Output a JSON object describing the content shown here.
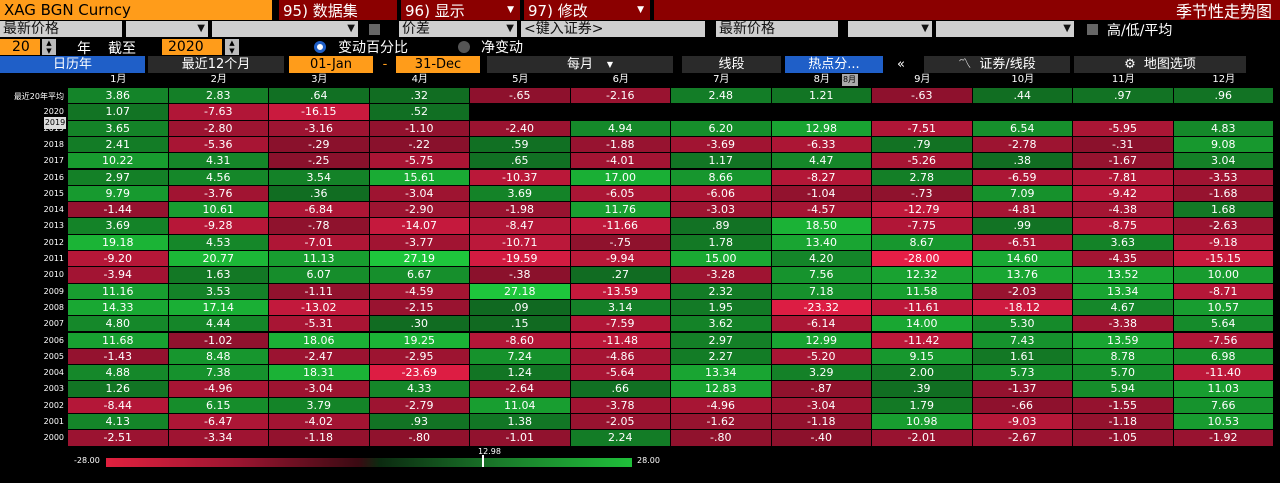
{
  "header": {
    "ticker": "XAG BGN Curncy",
    "menu1": "95) 数据集",
    "menu2": "96) 显示",
    "menu3": "97) 修改",
    "title": "季节性走势图"
  },
  "controls": {
    "field1": "最新价格",
    "checkbox_label1": "价差",
    "security_placeholder": "<键入证券>",
    "field2": "最新价格",
    "checkbox_label2": "高/低/平均",
    "years": "20",
    "years_unit": "年",
    "as_of_label": "截至",
    "as_of_year": "2020",
    "radio1": "变动百分比",
    "radio2": "净变动"
  },
  "toolbar": {
    "calendar_year": "日历年",
    "last12": "最近12个月",
    "start": "01-Jan",
    "dash": "-",
    "end": "31-Dec",
    "period": "每月",
    "line_seg": "线段",
    "hotspot": "热点分...",
    "collapse": "«",
    "security_line": "证券/线段",
    "map_options": "地图选项",
    "hotspot_tag": "8月"
  },
  "months": [
    "1月",
    "2月",
    "3月",
    "4月",
    "5月",
    "6月",
    "7月",
    "8月",
    "9月",
    "10月",
    "11月",
    "12月"
  ],
  "rows": [
    {
      "label": "最近20年平均",
      "values": [
        "3.86",
        "2.83",
        ".64",
        ".32",
        "-.65",
        "-2.16",
        "2.48",
        "1.21",
        "-.63",
        ".44",
        ".97",
        ".96"
      ]
    },
    {
      "label": "2020",
      "values": [
        "1.07",
        "-7.63",
        "-16.15",
        ".52",
        "",
        "",
        "",
        "",
        "",
        "",
        "",
        ""
      ]
    },
    {
      "label": "2019",
      "values": [
        "3.65",
        "-2.80",
        "-3.16",
        "-1.10",
        "-2.40",
        "4.94",
        "6.20",
        "12.98",
        "-7.51",
        "6.54",
        "-5.95",
        "4.83"
      ]
    },
    {
      "label": "2018",
      "values": [
        "2.41",
        "-5.36",
        "-.29",
        "-.22",
        ".59",
        "-1.88",
        "-3.69",
        "-6.33",
        ".79",
        "-2.78",
        "-.31",
        "9.08"
      ]
    },
    {
      "label": "2017",
      "values": [
        "10.22",
        "4.31",
        "-.25",
        "-5.75",
        ".65",
        "-4.01",
        "1.17",
        "4.47",
        "-5.26",
        ".38",
        "-1.67",
        "3.04"
      ]
    },
    {
      "label": "2016",
      "values": [
        "2.97",
        "4.56",
        "3.54",
        "15.61",
        "-10.37",
        "17.00",
        "8.66",
        "-8.27",
        "2.78",
        "-6.59",
        "-7.81",
        "-3.53"
      ]
    },
    {
      "label": "2015",
      "values": [
        "9.79",
        "-3.76",
        ".36",
        "-3.04",
        "3.69",
        "-6.05",
        "-6.06",
        "-1.04",
        "-.73",
        "7.09",
        "-9.42",
        "-1.68"
      ]
    },
    {
      "label": "2014",
      "values": [
        "-1.44",
        "10.61",
        "-6.84",
        "-2.90",
        "-1.98",
        "11.76",
        "-3.03",
        "-4.57",
        "-12.79",
        "-4.81",
        "-4.38",
        "1.68"
      ]
    },
    {
      "label": "2013",
      "values": [
        "3.69",
        "-9.28",
        "-.78",
        "-14.07",
        "-8.47",
        "-11.66",
        ".89",
        "18.50",
        "-7.75",
        ".99",
        "-8.75",
        "-2.63"
      ]
    },
    {
      "label": "2012",
      "values": [
        "19.18",
        "4.53",
        "-7.01",
        "-3.77",
        "-10.71",
        "-.75",
        "1.78",
        "13.40",
        "8.67",
        "-6.51",
        "3.63",
        "-9.18"
      ]
    },
    {
      "label": "2011",
      "values": [
        "-9.20",
        "20.77",
        "11.13",
        "27.19",
        "-19.59",
        "-9.94",
        "15.00",
        "4.20",
        "-28.00",
        "14.60",
        "-4.35",
        "-15.15"
      ]
    },
    {
      "label": "2010",
      "values": [
        "-3.94",
        "1.63",
        "6.07",
        "6.67",
        "-.38",
        ".27",
        "-3.28",
        "7.56",
        "12.32",
        "13.76",
        "13.52",
        "10.00"
      ]
    },
    {
      "label": "2009",
      "values": [
        "11.16",
        "3.53",
        "-1.11",
        "-4.59",
        "27.18",
        "-13.59",
        "2.32",
        "7.18",
        "11.58",
        "-2.03",
        "13.34",
        "-8.71"
      ]
    },
    {
      "label": "2008",
      "values": [
        "14.33",
        "17.14",
        "-13.02",
        "-2.15",
        ".09",
        "3.14",
        "1.95",
        "-23.32",
        "-11.61",
        "-18.12",
        "4.67",
        "10.57"
      ]
    },
    {
      "label": "2007",
      "values": [
        "4.80",
        "4.44",
        "-5.31",
        ".30",
        ".15",
        "-7.59",
        "3.62",
        "-6.14",
        "14.00",
        "5.30",
        "-3.38",
        "5.64"
      ]
    },
    {
      "label": "2006",
      "values": [
        "11.68",
        "-1.02",
        "18.06",
        "19.25",
        "-8.60",
        "-11.48",
        "2.97",
        "12.99",
        "-11.42",
        "7.43",
        "13.59",
        "-7.56"
      ]
    },
    {
      "label": "2005",
      "values": [
        "-1.43",
        "8.48",
        "-2.47",
        "-2.95",
        "7.24",
        "-4.86",
        "2.27",
        "-5.20",
        "9.15",
        "1.61",
        "8.78",
        "6.98"
      ]
    },
    {
      "label": "2004",
      "values": [
        "4.88",
        "7.38",
        "18.31",
        "-23.69",
        "1.24",
        "-5.64",
        "13.34",
        "3.29",
        "2.00",
        "5.73",
        "5.70",
        "-11.40"
      ]
    },
    {
      "label": "2003",
      "values": [
        "1.26",
        "-4.96",
        "-3.04",
        "4.33",
        "-2.64",
        ".66",
        "12.83",
        "-.87",
        ".39",
        "-1.37",
        "5.94",
        "11.03"
      ]
    },
    {
      "label": "2002",
      "values": [
        "-8.44",
        "6.15",
        "3.79",
        "-2.79",
        "11.04",
        "-3.78",
        "-4.96",
        "-3.04",
        "1.79",
        "-.66",
        "-1.55",
        "7.66"
      ]
    },
    {
      "label": "2001",
      "values": [
        "4.13",
        "-6.47",
        "-4.02",
        ".93",
        "1.38",
        "-2.05",
        "-1.62",
        "-1.18",
        "10.98",
        "-9.03",
        "-1.18",
        "10.53"
      ]
    },
    {
      "label": "2000",
      "values": [
        "-2.51",
        "-3.34",
        "-1.18",
        "-.80",
        "-1.01",
        "2.24",
        "-.80",
        "-.40",
        "-2.01",
        "-2.67",
        "-1.05",
        "-1.92"
      ]
    }
  ],
  "legend": {
    "min": "-28.00",
    "max": "28.00",
    "marker": "12.98"
  },
  "colors": {
    "pos": "#1fbf3a",
    "neg": "#e0203e",
    "orange": "#ff9c1a",
    "header_red": "#8b0000",
    "blue": "#1f5fc8"
  },
  "icons": {
    "gear": "gear-icon",
    "chart": "chart-icon"
  }
}
